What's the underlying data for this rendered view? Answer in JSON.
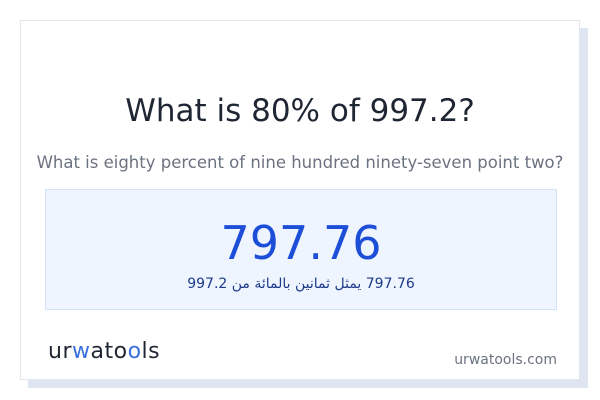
{
  "title": "What is 80% of 997.2?",
  "subtitle": "What is eighty percent of nine hundred ninety-seven point two?",
  "result": {
    "value": "797.76",
    "arabic": "797.76 يمثل ثمانين بالمائة من 997.2"
  },
  "logo": {
    "p1": "ur",
    "p2": "w",
    "p3": "at",
    "p4": "o",
    "p5": "o",
    "p6": "ls"
  },
  "site": "urwatools.com",
  "colors": {
    "accent": "#1d4ed8",
    "result_bg": "#eef5ff"
  }
}
